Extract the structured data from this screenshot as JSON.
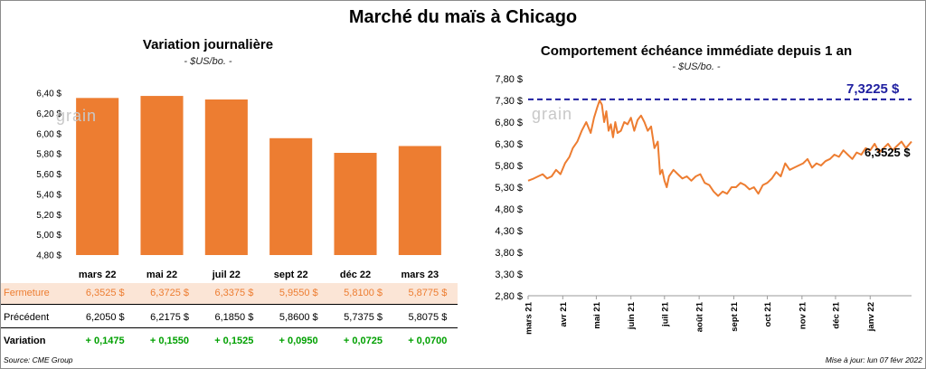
{
  "title": "Marché du maïs à Chicago",
  "left": {
    "subtitle": "Variation  journalière",
    "unit": "- $US/bo. -",
    "watermark": "grain",
    "rows": {
      "close_label": "Fermeture",
      "prev_label": "Précédent",
      "var_label": "Variation",
      "close": [
        "6,3525  $",
        "6,3725  $",
        "6,3375  $",
        "5,9550  $",
        "5,8100  $",
        "5,8775  $"
      ],
      "prev": [
        "6,2050  $",
        "6,2175  $",
        "6,1850  $",
        "5,8600  $",
        "5,7375  $",
        "5,8075  $"
      ],
      "variation": [
        "+ 0,1475",
        "+ 0,1550",
        "+ 0,1525",
        "+ 0,0950",
        "+ 0,0725",
        "+ 0,0700"
      ]
    }
  },
  "right": {
    "subtitle": "Comportement  échéance immédiate depuis 1 an",
    "unit": "- $US/bo. -",
    "watermark": "grain",
    "ref_label": "7,3225 $",
    "last_label": "6,3525 $"
  },
  "footer": {
    "source": "Source: CME Group",
    "update": "Mise à jour: lun 07 févr 2022"
  },
  "colors": {
    "bar": "#ed7d31",
    "line": "#ed7d31",
    "ref_line": "#1f1fa0",
    "ref_label": "#1f1fa0",
    "positive": "#00a000",
    "close_row_bg": "#fbe5d6"
  },
  "chart_data": [
    {
      "type": "bar",
      "title": "Variation  journalière",
      "ylabel": "",
      "categories": [
        "mars 22",
        "mai 22",
        "juil 22",
        "sept 22",
        "déc 22",
        "mars 23"
      ],
      "values": [
        6.3525,
        6.3725,
        6.3375,
        5.955,
        5.81,
        5.8775
      ],
      "ylim": [
        4.8,
        6.4
      ],
      "yticks": [
        "4,80 $",
        "5,00 $",
        "5,20 $",
        "5,40 $",
        "5,60 $",
        "5,80 $",
        "6,00 $",
        "6,20 $",
        "6,40 $"
      ],
      "ytick_values": [
        4.8,
        5.0,
        5.2,
        5.4,
        5.6,
        5.8,
        6.0,
        6.2,
        6.4
      ],
      "grid": false
    },
    {
      "type": "line",
      "title": "Comportement  échéance immédiate depuis 1 an",
      "ylim": [
        2.8,
        7.8
      ],
      "yticks": [
        "2,80 $",
        "3,30 $",
        "3,80 $",
        "4,30 $",
        "4,80 $",
        "5,30 $",
        "5,80 $",
        "6,30 $",
        "6,80 $",
        "7,30 $",
        "7,80 $"
      ],
      "ytick_values": [
        2.8,
        3.3,
        3.8,
        4.3,
        4.8,
        5.3,
        5.8,
        6.3,
        6.8,
        7.3,
        7.8
      ],
      "xticks": [
        "mars 21",
        "avr 21",
        "mai 21",
        "juin 21",
        "juil 21",
        "août 21",
        "sept 21",
        "oct 21",
        "nov 21",
        "déc 21",
        "janv 22"
      ],
      "xtick_days": [
        0,
        31,
        61,
        92,
        122,
        153,
        184,
        214,
        245,
        275,
        306
      ],
      "x_days_span": 343,
      "reference_line": 7.3225,
      "last_value": 6.3525,
      "grid": false,
      "series": [
        {
          "days": [
            0,
            5,
            9,
            13,
            17,
            21,
            25,
            29,
            33,
            37,
            40,
            44,
            48,
            52,
            56,
            59,
            62,
            64,
            66,
            68,
            70,
            72,
            74,
            76,
            78,
            80,
            83,
            86,
            89,
            92,
            95,
            98,
            101,
            104,
            107,
            110,
            113,
            116,
            118,
            120,
            122,
            124,
            126,
            130,
            134,
            138,
            142,
            146,
            150,
            154,
            158,
            162,
            166,
            170,
            174,
            178,
            182,
            186,
            190,
            194,
            198,
            202,
            206,
            210,
            214,
            218,
            222,
            226,
            230,
            234,
            238,
            242,
            246,
            250,
            254,
            258,
            262,
            266,
            270,
            274,
            278,
            282,
            286,
            290,
            294,
            298,
            302,
            306,
            310,
            314,
            318,
            322,
            326,
            330,
            334,
            338,
            343
          ],
          "values": [
            5.45,
            5.5,
            5.55,
            5.6,
            5.5,
            5.55,
            5.7,
            5.6,
            5.85,
            6.0,
            6.2,
            6.35,
            6.6,
            6.8,
            6.55,
            6.9,
            7.15,
            7.3,
            7.2,
            6.8,
            7.05,
            6.6,
            6.75,
            6.45,
            6.8,
            6.55,
            6.6,
            6.8,
            6.75,
            6.9,
            6.6,
            6.85,
            6.95,
            6.8,
            6.6,
            6.7,
            6.2,
            6.35,
            5.6,
            5.7,
            5.45,
            5.3,
            5.55,
            5.7,
            5.6,
            5.5,
            5.55,
            5.45,
            5.55,
            5.6,
            5.4,
            5.35,
            5.2,
            5.1,
            5.2,
            5.15,
            5.3,
            5.3,
            5.4,
            5.35,
            5.25,
            5.3,
            5.15,
            5.35,
            5.4,
            5.5,
            5.65,
            5.55,
            5.85,
            5.7,
            5.75,
            5.8,
            5.85,
            5.95,
            5.75,
            5.85,
            5.8,
            5.9,
            5.95,
            6.05,
            6.0,
            6.15,
            6.05,
            5.95,
            6.1,
            6.05,
            6.2,
            6.15,
            6.3,
            6.1,
            6.2,
            6.3,
            6.15,
            6.25,
            6.35,
            6.2,
            6.3525
          ]
        }
      ]
    }
  ]
}
